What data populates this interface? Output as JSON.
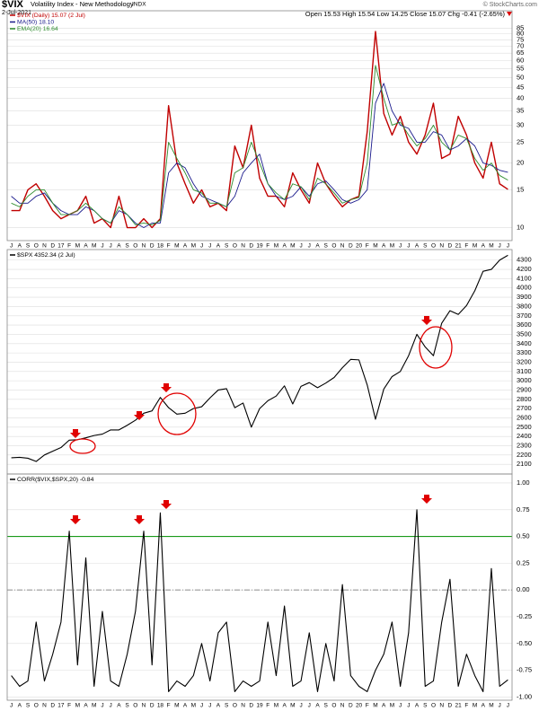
{
  "chart_data": [
    {
      "type": "line",
      "title": "$VIX",
      "subtitle": "Volatility Index - New Methodology",
      "exchange": "INDX",
      "date": "2-Jul-2021",
      "quote": "Open 15.53 High 15.54 Low 14.25 Close 15.07 Chg -0.41 (-2.65%)",
      "source": "© StockCharts.com",
      "log_scale": true,
      "grid": true,
      "ylim": [
        8.7,
        93
      ],
      "yticks": [
        10,
        15,
        20,
        25,
        30,
        35,
        40,
        45,
        50,
        55,
        60,
        65,
        70,
        75,
        80,
        85
      ],
      "categories": [
        "J",
        "A",
        "S",
        "O",
        "N",
        "D",
        "17",
        "F",
        "M",
        "A",
        "M",
        "J",
        "J",
        "A",
        "S",
        "O",
        "N",
        "D",
        "18",
        "F",
        "M",
        "A",
        "M",
        "J",
        "J",
        "A",
        "S",
        "O",
        "N",
        "D",
        "19",
        "F",
        "M",
        "A",
        "M",
        "J",
        "J",
        "A",
        "S",
        "O",
        "N",
        "D",
        "20",
        "F",
        "M",
        "A",
        "M",
        "J",
        "J",
        "A",
        "S",
        "O",
        "N",
        "D",
        "21",
        "F",
        "M",
        "A",
        "M",
        "J",
        "J"
      ],
      "series": [
        {
          "name": "$VIX (Daily) 15.07 (2 Jul)",
          "color": "#c00000",
          "width": 1.4,
          "values": [
            12,
            12,
            15,
            16,
            14,
            12,
            11,
            11.5,
            12,
            14,
            10.5,
            11,
            10,
            14,
            10,
            10,
            11,
            10,
            11,
            37,
            20,
            16,
            13,
            15,
            12.5,
            13,
            12,
            24,
            19,
            30,
            17,
            14,
            14,
            12.5,
            18,
            15,
            13,
            20,
            16,
            14,
            12.5,
            13.5,
            14,
            28,
            82,
            34,
            27,
            33,
            25,
            22,
            27,
            38,
            21,
            22,
            33,
            27,
            20,
            17,
            25,
            16,
            15.07
          ]
        },
        {
          "name": "MA(50) 18.10",
          "color": "#1a1a8c",
          "width": 0.9,
          "values": [
            14,
            13,
            13,
            14,
            14.5,
            13,
            12,
            11.5,
            11.5,
            12.5,
            12,
            11,
            10.5,
            12,
            11.5,
            10.5,
            10,
            10.5,
            10.5,
            18,
            20,
            19,
            16,
            14,
            13.5,
            13,
            12.5,
            14,
            18,
            20,
            22,
            16,
            14,
            13.5,
            14,
            15.5,
            14,
            16,
            16.5,
            15,
            13.5,
            13,
            13.5,
            15,
            38,
            47,
            35,
            30,
            29,
            25,
            25,
            28,
            27,
            23,
            24,
            26,
            24,
            20,
            19.5,
            18.5,
            18.1
          ]
        },
        {
          "name": "EMA(20) 16.64",
          "color": "#2e8b2e",
          "width": 0.9,
          "values": [
            13,
            12.5,
            14,
            15,
            15,
            13,
            11.5,
            11.5,
            12,
            13,
            12,
            11,
            10.5,
            12.5,
            11.5,
            10.3,
            10.5,
            10.3,
            10.8,
            25,
            21,
            18,
            15,
            14.5,
            13,
            13,
            12.5,
            18,
            19,
            25,
            20,
            16,
            14.5,
            13.5,
            16,
            15.5,
            13.5,
            17,
            16,
            14.5,
            13,
            13.5,
            13.8,
            20,
            57,
            40,
            30,
            31,
            27,
            24,
            26,
            30,
            25,
            23,
            27,
            26,
            21,
            18.5,
            20,
            17.5,
            16.64
          ]
        }
      ]
    },
    {
      "type": "line",
      "grid": true,
      "ylim": [
        1995,
        4375
      ],
      "yticks": [
        2100,
        2200,
        2300,
        2400,
        2500,
        2600,
        2700,
        2800,
        2900,
        3000,
        3100,
        3200,
        3300,
        3400,
        3500,
        3600,
        3700,
        3800,
        3900,
        4000,
        4100,
        4200,
        4300
      ],
      "series": [
        {
          "name": "$SPX 4352.34 (2 Jul)",
          "color": "#000000",
          "width": 1.1,
          "values": [
            2170,
            2175,
            2165,
            2130,
            2200,
            2240,
            2280,
            2360,
            2365,
            2385,
            2410,
            2425,
            2470,
            2470,
            2520,
            2575,
            2650,
            2675,
            2820,
            2710,
            2640,
            2650,
            2700,
            2720,
            2815,
            2900,
            2915,
            2710,
            2760,
            2500,
            2700,
            2785,
            2835,
            2945,
            2750,
            2940,
            2980,
            2925,
            2975,
            3035,
            3140,
            3230,
            3225,
            2955,
            2585,
            2910,
            3045,
            3100,
            3270,
            3500,
            3365,
            3270,
            3620,
            3755,
            3715,
            3810,
            3970,
            4180,
            4200,
            4300,
            4352
          ]
        }
      ]
    },
    {
      "type": "line",
      "grid": true,
      "ylim": [
        -1.03,
        1.05
      ],
      "yticks": [
        {
          "value": 1,
          "label": "1.00"
        },
        {
          "value": 0.75,
          "label": "0.75"
        },
        {
          "value": 0.5,
          "label": "0.50"
        },
        {
          "value": 0.25,
          "label": "0.25"
        },
        {
          "value": 0,
          "label": "0.00"
        },
        {
          "value": -0.25,
          "label": "-0.25"
        },
        {
          "value": -0.5,
          "label": "-0.50"
        },
        {
          "value": -0.75,
          "label": "-0.75"
        },
        {
          "value": -1,
          "label": "-1.00"
        }
      ],
      "categories": [
        "J",
        "A",
        "S",
        "O",
        "N",
        "D",
        "17",
        "F",
        "M",
        "A",
        "M",
        "J",
        "J",
        "A",
        "S",
        "O",
        "N",
        "D",
        "18",
        "F",
        "M",
        "A",
        "M",
        "J",
        "J",
        "A",
        "S",
        "O",
        "N",
        "D",
        "19",
        "F",
        "M",
        "A",
        "M",
        "J",
        "J",
        "A",
        "S",
        "O",
        "N",
        "D",
        "20",
        "F",
        "M",
        "A",
        "M",
        "J",
        "J",
        "A",
        "S",
        "O",
        "N",
        "D",
        "21",
        "F",
        "M",
        "A",
        "M",
        "J",
        "J"
      ],
      "ref_lines": [
        {
          "value": 0.5,
          "color": "#1a9a1a",
          "dashed": false
        },
        {
          "value": 0,
          "color": "#999999",
          "dashed": true
        }
      ],
      "series": [
        {
          "name": "CORR($VIX,$SPX,20) -0.84",
          "color": "#000000",
          "width": 1.1,
          "values": [
            -0.8,
            -0.9,
            -0.85,
            -0.3,
            -0.85,
            -0.6,
            -0.3,
            0.55,
            -0.7,
            0.3,
            -0.9,
            -0.2,
            -0.85,
            -0.9,
            -0.6,
            -0.2,
            0.55,
            -0.7,
            0.72,
            -0.95,
            -0.85,
            -0.9,
            -0.8,
            -0.5,
            -0.85,
            -0.4,
            -0.3,
            -0.95,
            -0.85,
            -0.9,
            -0.85,
            -0.3,
            -0.8,
            -0.15,
            -0.9,
            -0.85,
            -0.4,
            -0.95,
            -0.5,
            -0.85,
            0.05,
            -0.8,
            -0.9,
            -0.95,
            -0.75,
            -0.6,
            -0.3,
            -0.9,
            -0.4,
            0.75,
            -0.9,
            -0.85,
            -0.3,
            0.1,
            -0.9,
            -0.6,
            -0.8,
            -0.95,
            0.2,
            -0.9,
            -0.84
          ]
        }
      ]
    }
  ]
}
